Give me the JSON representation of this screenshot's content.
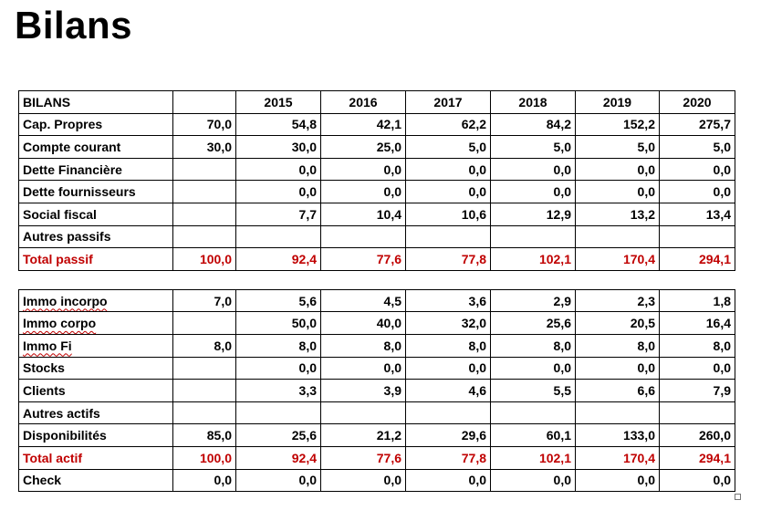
{
  "title": "Bilans",
  "table": {
    "header": [
      "BILANS",
      "",
      "2015",
      "2016",
      "2017",
      "2018",
      "2019",
      "2020"
    ],
    "passif_rows": [
      {
        "label": "Cap. Propres",
        "values": [
          "70,0",
          "54,8",
          "42,1",
          "62,2",
          "84,2",
          "152,2",
          "275,7"
        ]
      },
      {
        "label": "Compte courant",
        "values": [
          "30,0",
          "30,0",
          "25,0",
          "5,0",
          "5,0",
          "5,0",
          "5,0"
        ]
      },
      {
        "label": "Dette Financière",
        "values": [
          "",
          "0,0",
          "0,0",
          "0,0",
          "0,0",
          "0,0",
          "0,0"
        ]
      },
      {
        "label": "Dette fournisseurs",
        "values": [
          "",
          "0,0",
          "0,0",
          "0,0",
          "0,0",
          "0,0",
          "0,0"
        ]
      },
      {
        "label": "Social fiscal",
        "values": [
          "",
          "7,7",
          "10,4",
          "10,6",
          "12,9",
          "13,2",
          "13,4"
        ]
      },
      {
        "label": "Autres passifs",
        "values": [
          "",
          "",
          "",
          "",
          "",
          "",
          ""
        ]
      }
    ],
    "total_passif": {
      "label": "Total passif",
      "values": [
        "100,0",
        "92,4",
        "77,6",
        "77,8",
        "102,1",
        "170,4",
        "294,1"
      ]
    },
    "actif_rows": [
      {
        "label": "Immo incorpo",
        "values": [
          "7,0",
          "5,6",
          "4,5",
          "3,6",
          "2,9",
          "2,3",
          "1,8"
        ]
      },
      {
        "label": "Immo corpo",
        "values": [
          "",
          "50,0",
          "40,0",
          "32,0",
          "25,6",
          "20,5",
          "16,4"
        ]
      },
      {
        "label": "Immo Fi",
        "values": [
          "8,0",
          "8,0",
          "8,0",
          "8,0",
          "8,0",
          "8,0",
          "8,0"
        ]
      },
      {
        "label": "Stocks",
        "values": [
          "",
          "0,0",
          "0,0",
          "0,0",
          "0,0",
          "0,0",
          "0,0"
        ]
      },
      {
        "label": "Clients",
        "values": [
          "",
          "3,3",
          "3,9",
          "4,6",
          "5,5",
          "6,6",
          "7,9"
        ]
      },
      {
        "label": "Autres actifs",
        "values": [
          "",
          "",
          "",
          "",
          "",
          "",
          ""
        ]
      },
      {
        "label": "Disponibilités",
        "values": [
          "85,0",
          "25,6",
          "21,2",
          "29,6",
          "60,1",
          "133,0",
          "260,0"
        ]
      }
    ],
    "total_actif": {
      "label": "Total actif",
      "values": [
        "100,0",
        "92,4",
        "77,6",
        "77,8",
        "102,1",
        "170,4",
        "294,1"
      ]
    },
    "check": {
      "label": "Check",
      "values": [
        "0,0",
        "0,0",
        "0,0",
        "0,0",
        "0,0",
        "0,0",
        "0,0"
      ]
    }
  },
  "colors": {
    "total_text": "#c00000",
    "spellcheck_underline": "#c00000"
  }
}
